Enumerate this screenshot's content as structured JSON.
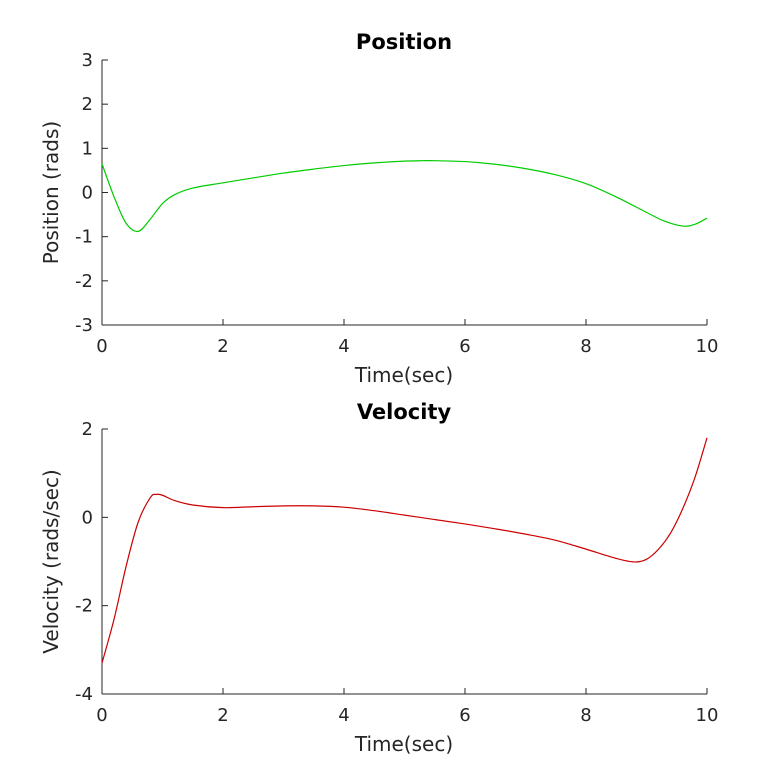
{
  "chart_data": [
    {
      "type": "line",
      "title": "Position",
      "xlabel": "Time(sec)",
      "ylabel": "Position (rads)",
      "xlim": [
        0,
        10
      ],
      "ylim": [
        -3,
        3
      ],
      "xticks": [
        0,
        2,
        4,
        6,
        8,
        10
      ],
      "xtick_labels": [
        "0",
        "2",
        "4",
        "6",
        "8",
        "10"
      ],
      "yticks": [
        -3,
        -2,
        -1,
        0,
        1,
        2,
        3
      ],
      "ytick_labels": [
        "-3",
        "-2",
        "-1",
        "0",
        "1",
        "2",
        "3"
      ],
      "grid": false,
      "series": [
        {
          "color": "#00cc00",
          "x": [
            0,
            0.2,
            0.4,
            0.6,
            0.8,
            1.0,
            1.2,
            1.5,
            2.0,
            2.5,
            3.0,
            3.5,
            4.0,
            4.5,
            5.0,
            5.3,
            5.5,
            6.0,
            6.5,
            7.0,
            7.5,
            8.0,
            8.5,
            9.0,
            9.3,
            9.6,
            9.8,
            10.0
          ],
          "y": [
            0.65,
            -0.1,
            -0.7,
            -0.88,
            -0.6,
            -0.25,
            -0.05,
            0.1,
            0.22,
            0.33,
            0.44,
            0.53,
            0.61,
            0.67,
            0.71,
            0.72,
            0.72,
            0.7,
            0.64,
            0.54,
            0.4,
            0.2,
            -0.1,
            -0.45,
            -0.65,
            -0.76,
            -0.72,
            -0.58
          ]
        }
      ]
    },
    {
      "type": "line",
      "title": "Velocity",
      "xlabel": "Time(sec)",
      "ylabel": "Velocity (rads/sec)",
      "xlim": [
        0,
        10
      ],
      "ylim": [
        -4,
        2
      ],
      "xticks": [
        0,
        2,
        4,
        6,
        8,
        10
      ],
      "xtick_labels": [
        "0",
        "2",
        "4",
        "6",
        "8",
        "10"
      ],
      "yticks": [
        -4,
        -2,
        0,
        2
      ],
      "ytick_labels": [
        "-4",
        "-2",
        "0",
        "2"
      ],
      "grid": false,
      "series": [
        {
          "color": "#cc0000",
          "x": [
            0,
            0.2,
            0.4,
            0.6,
            0.8,
            0.9,
            1.0,
            1.2,
            1.5,
            2.0,
            2.5,
            3.0,
            3.5,
            4.0,
            4.5,
            5.0,
            5.5,
            6.0,
            6.5,
            7.0,
            7.5,
            8.0,
            8.5,
            8.8,
            9.0,
            9.2,
            9.4,
            9.6,
            9.8,
            10.0
          ],
          "y": [
            -3.3,
            -2.3,
            -1.1,
            -0.1,
            0.45,
            0.52,
            0.5,
            0.38,
            0.28,
            0.22,
            0.24,
            0.26,
            0.26,
            0.23,
            0.15,
            0.05,
            -0.05,
            -0.15,
            -0.26,
            -0.38,
            -0.52,
            -0.72,
            -0.93,
            -1.01,
            -0.95,
            -0.72,
            -0.35,
            0.2,
            0.9,
            1.8
          ]
        }
      ]
    }
  ]
}
